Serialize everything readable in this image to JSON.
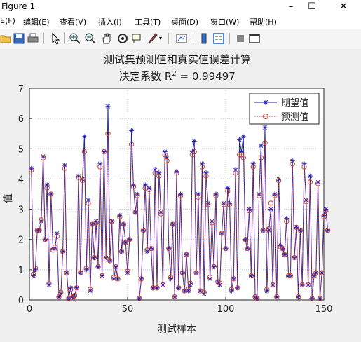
{
  "window": {
    "title": "Figure 1"
  },
  "menu": [
    {
      "label": "E(F)"
    },
    {
      "label": "编辑(E)"
    },
    {
      "label": "查看(V)"
    },
    {
      "label": "插入(I)"
    },
    {
      "label": "工具(T)"
    },
    {
      "label": "桌面(D)"
    },
    {
      "label": "窗口(W)"
    },
    {
      "label": "帮助(H)"
    }
  ],
  "toolbar": [
    "folder-open-icon",
    "save-icon",
    "print-icon",
    "pointer-icon",
    "zoom-in-icon",
    "zoom-out-icon",
    "pan-icon",
    "rotate-icon",
    "data-cursor-icon",
    "brush-icon",
    "link-icon",
    "colorbar-icon",
    "legend-icon",
    "hide-tools-icon",
    "dock-icon"
  ],
  "chart_data": {
    "type": "line",
    "title": "测试集预测值和真实值误差计算",
    "subtitle_prefix": "决定系数 R",
    "subtitle_sup": "2",
    "subtitle_suffix": " = 0.99497",
    "xlabel": "测试样本",
    "ylabel": "值",
    "xlim": [
      0,
      150
    ],
    "ylim": [
      0,
      7
    ],
    "xticks": [
      0,
      50,
      100,
      150
    ],
    "yticks": [
      0,
      1,
      2,
      3,
      4,
      5,
      6,
      7
    ],
    "grid": true,
    "legend_position": "top-right",
    "series": [
      {
        "name": "期望值",
        "color": "#1f1fb4",
        "marker": "asterisk",
        "values": [
          4.35,
          0.8,
          1.0,
          2.3,
          2.3,
          2.6,
          4.75,
          2.0,
          3.8,
          0.5,
          3.5,
          1.7,
          1.7,
          2.2,
          0.1,
          0.2,
          1.6,
          4.45,
          0.9,
          0.05,
          0.4,
          0.1,
          0.1,
          0.4,
          4.1,
          0.9,
          4.0,
          5.4,
          1.0,
          3.3,
          0.3,
          2.5,
          1.4,
          2.6,
          1.1,
          4.5,
          0.8,
          4.9,
          1.4,
          6.4,
          1.3,
          2.6,
          0.7,
          1.1,
          0.7,
          2.8,
          1.6,
          2.5,
          1.9,
          0.9,
          2.0,
          5.6,
          3.8,
          2.9,
          3.5,
          0.05,
          0.7,
          2.3,
          3.8,
          1.6,
          3.7,
          1.7,
          0.4,
          4.3,
          0.4,
          4.2,
          2.9,
          0.5,
          4.9,
          4.7,
          1.7,
          0.7,
          2.5,
          0.1,
          4.25,
          0.4,
          3.5,
          0.9,
          0.3,
          1.5,
          0.3,
          0.5,
          4.9,
          5.25,
          0.9,
          3.5,
          0.3,
          4.5,
          0.2,
          4.2,
          3.2,
          0.7,
          2.6,
          1.1,
          3.5,
          0.6,
          0.5,
          2.2,
          3.2,
          1.7,
          3.7,
          3.2,
          0.3,
          0.7,
          4.3,
          0.4,
          5.3,
          4.9,
          5.4,
          2.0,
          1.7,
          3.0,
          0.8,
          4.5,
          0.1,
          0.05,
          3.5,
          5.1,
          2.3,
          5.7,
          0.3,
          2.3,
          3.0,
          0.5,
          3.5,
          0.1,
          4.0,
          1.8,
          1.7,
          1.5,
          2.7,
          0.8,
          0.8,
          4.6,
          1.4,
          2.4,
          0.1,
          2.3,
          0.5,
          4.5,
          3.3,
          0.5,
          4.1,
          0.05,
          0.8,
          0.9,
          3.9,
          0.05,
          0.9,
          2.8,
          3.0,
          2.3
        ]
      },
      {
        "name": "预测值",
        "color": "#c0392b",
        "marker": "circle",
        "values": [
          4.3,
          0.85,
          1.05,
          2.3,
          2.3,
          2.65,
          4.7,
          2.0,
          3.7,
          0.55,
          3.5,
          1.65,
          1.75,
          2.1,
          0.1,
          0.25,
          1.6,
          4.35,
          0.9,
          0.05,
          0.35,
          0.1,
          0.15,
          0.4,
          4.05,
          0.9,
          3.95,
          4.9,
          1.05,
          3.2,
          0.35,
          2.5,
          1.4,
          2.55,
          1.1,
          4.4,
          0.8,
          4.9,
          1.35,
          5.5,
          1.3,
          2.6,
          0.75,
          1.1,
          0.7,
          2.75,
          1.6,
          2.5,
          1.9,
          0.95,
          2.0,
          5.15,
          3.75,
          2.9,
          3.45,
          0.05,
          0.7,
          2.3,
          3.7,
          1.65,
          3.65,
          1.7,
          0.4,
          4.2,
          0.4,
          4.1,
          2.85,
          0.5,
          4.8,
          4.6,
          1.7,
          0.75,
          2.5,
          0.1,
          4.2,
          0.4,
          3.45,
          0.9,
          0.3,
          1.5,
          0.35,
          0.55,
          4.8,
          4.9,
          0.9,
          3.4,
          0.3,
          4.4,
          0.25,
          4.1,
          3.15,
          0.75,
          2.55,
          1.1,
          3.45,
          0.6,
          0.55,
          2.2,
          3.15,
          1.7,
          3.6,
          3.15,
          0.35,
          0.7,
          4.2,
          0.4,
          4.8,
          4.8,
          4.7,
          2.0,
          1.7,
          2.95,
          0.8,
          4.4,
          0.1,
          0.05,
          3.45,
          4.7,
          2.3,
          5.2,
          0.35,
          2.35,
          3.2,
          0.5,
          3.45,
          0.1,
          3.95,
          1.75,
          1.7,
          1.5,
          2.6,
          0.8,
          0.8,
          4.5,
          1.4,
          2.4,
          0.1,
          2.3,
          0.5,
          4.4,
          3.25,
          0.5,
          3.9,
          0.05,
          0.8,
          0.9,
          3.85,
          0.05,
          0.9,
          2.75,
          2.95,
          2.3
        ]
      }
    ]
  }
}
